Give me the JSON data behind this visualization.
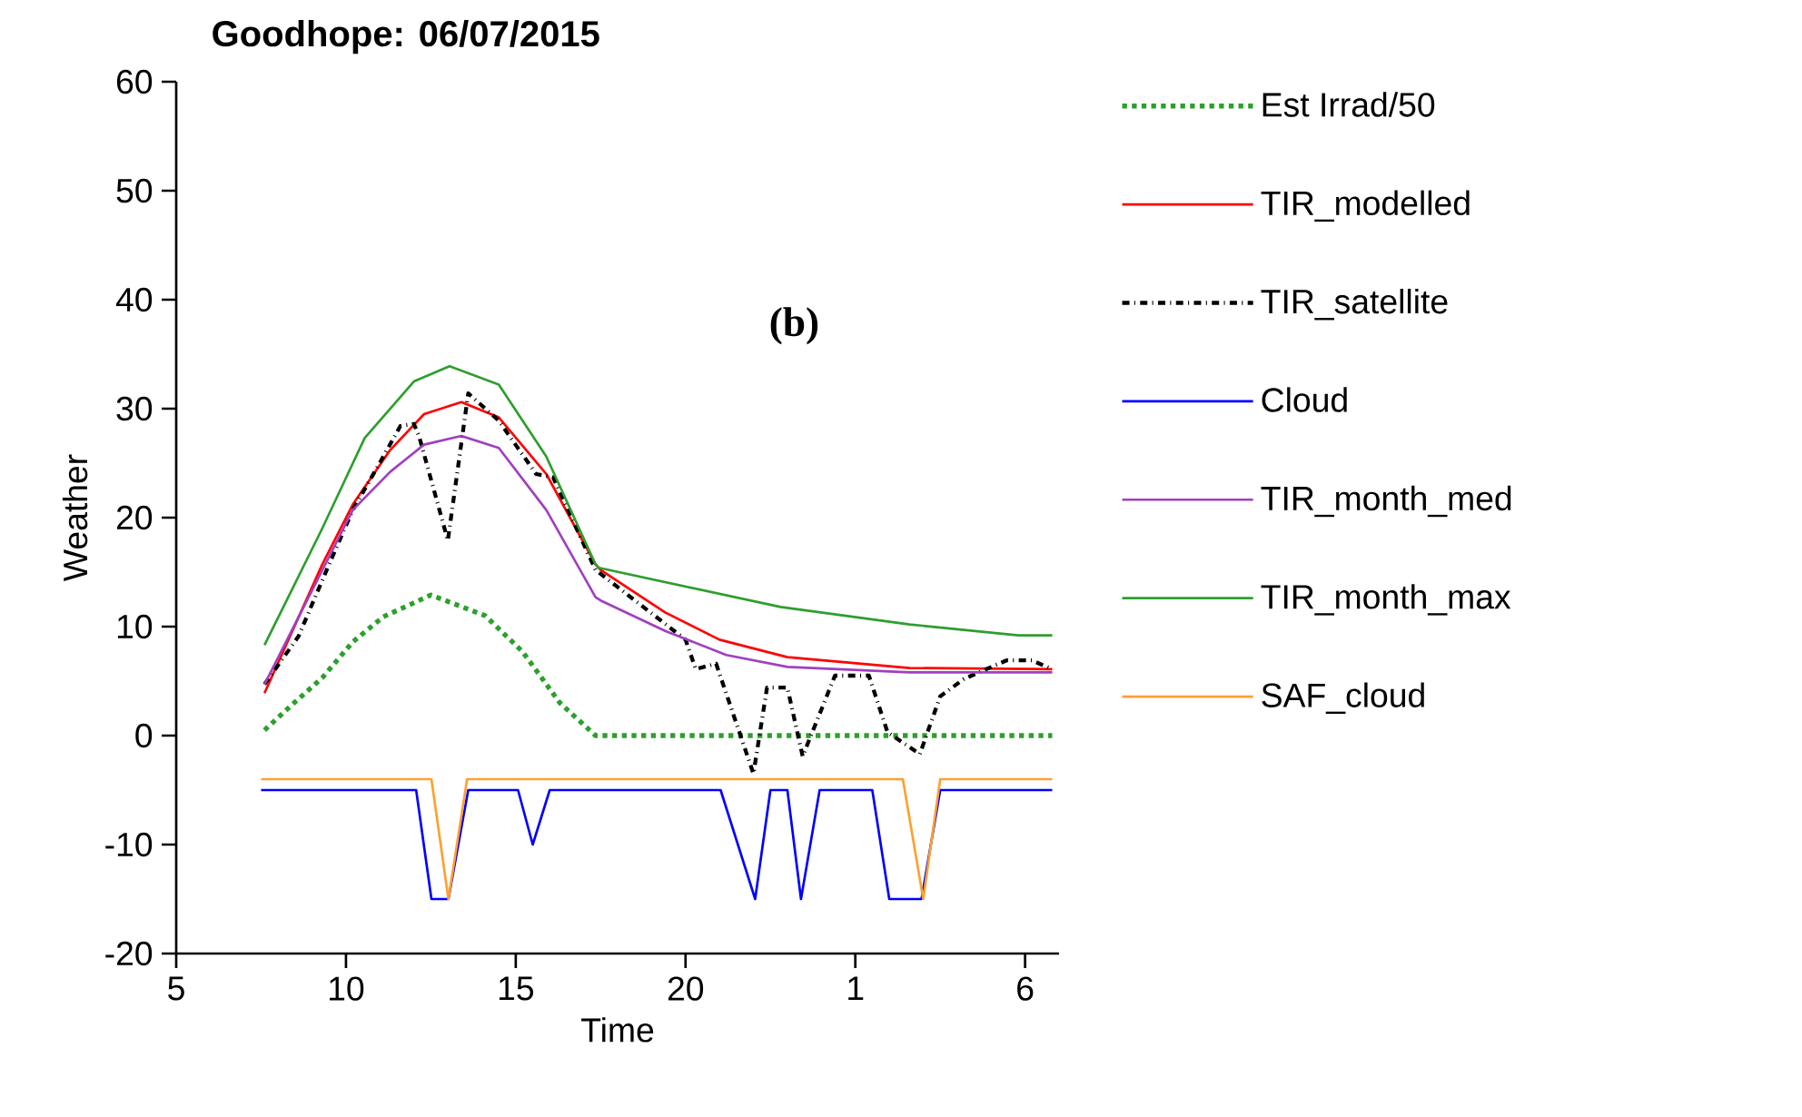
{
  "chart_data": {
    "type": "line",
    "title": "Goodhope: 06/07/2015",
    "xlabel": "Time",
    "ylabel": "Weather",
    "xlim": [
      "2015-07-06T05:00",
      "2015-07-07T07:00"
    ],
    "ylim": [
      -20,
      60
    ],
    "xticks": [
      {
        "value": "2015-07-06T05:00",
        "label": "5"
      },
      {
        "value": "2015-07-06T10:00",
        "label": "10"
      },
      {
        "value": "2015-07-06T15:00",
        "label": "15"
      },
      {
        "value": "2015-07-06T20:00",
        "label": "20"
      },
      {
        "value": "2015-07-07T01:00",
        "label": "1"
      },
      {
        "value": "2015-07-07T06:00",
        "label": "6"
      }
    ],
    "yticks": [
      -20,
      -10,
      0,
      10,
      20,
      30,
      40,
      50,
      60
    ],
    "grid": false,
    "legend": "right",
    "marker": "none",
    "annotations": [
      "(b)"
    ],
    "series": [
      {
        "name": "Est Irrad/50",
        "color": "#2ca02c",
        "line_style": "dotted",
        "x": [
          "2015-07-06T07:36",
          "2015-07-06T08:24",
          "2015-07-06T09:18",
          "2015-07-06T10:12",
          "2015-07-06T11:06",
          "2015-07-06T12:30",
          "2015-07-06T14:06",
          "2015-07-06T15:12",
          "2015-07-06T16:18",
          "2015-07-06T17:21",
          "2015-07-07T06:48"
        ],
        "values": [
          0.5,
          2.8,
          5.3,
          8.6,
          10.9,
          12.9,
          11.0,
          7.7,
          3.0,
          0,
          0
        ]
      },
      {
        "name": "TIR_modelled",
        "color": "#ff0000",
        "line_style": "solid",
        "x": [
          "2015-07-06T07:36",
          "2015-07-06T09:18",
          "2015-07-06T10:12",
          "2015-07-06T11:18",
          "2015-07-06T12:18",
          "2015-07-06T13:24",
          "2015-07-06T14:30",
          "2015-07-06T15:54",
          "2015-07-06T17:21",
          "2015-07-06T17:30",
          "2015-07-06T19:24",
          "2015-07-06T21:00",
          "2015-07-06T23:00",
          "2015-07-07T02:36",
          "2015-07-07T06:48"
        ],
        "values": [
          3.9,
          15.7,
          21.2,
          26.2,
          29.5,
          30.6,
          29.2,
          24.0,
          15.7,
          15.2,
          11.3,
          8.8,
          7.2,
          6.2,
          6.1
        ]
      },
      {
        "name": "TIR_satellite",
        "color": "#000000",
        "line_style": "dashdot",
        "x": [
          "2015-07-06T07:36",
          "2015-07-06T07:51",
          "2015-07-06T08:36",
          "2015-07-06T09:30",
          "2015-07-06T10:12",
          "2015-07-06T10:54",
          "2015-07-06T11:36",
          "2015-07-06T12:00",
          "2015-07-06T12:09",
          "2015-07-06T13:00",
          "2015-07-06T13:36",
          "2015-07-06T14:30",
          "2015-07-06T15:36",
          "2015-07-06T16:06",
          "2015-07-06T17:21",
          "2015-07-06T17:36",
          "2015-07-06T20:00",
          "2015-07-06T20:18",
          "2015-07-06T20:54",
          "2015-07-06T22:00",
          "2015-07-06T22:24",
          "2015-07-06T23:00",
          "2015-07-06T23:27",
          "2015-07-07T00:24",
          "2015-07-07T01:24",
          "2015-07-07T01:57",
          "2015-07-07T02:54",
          "2015-07-07T03:30",
          "2015-07-07T04:12",
          "2015-07-07T05:27",
          "2015-07-07T06:12",
          "2015-07-07T06:48"
        ],
        "values": [
          4.7,
          5.8,
          9.1,
          15.7,
          20.7,
          24.5,
          28.4,
          28.6,
          27.5,
          17.9,
          31.4,
          28.9,
          24.0,
          23.7,
          15.2,
          14.6,
          8.8,
          6.1,
          6.6,
          -3.5,
          4.4,
          4.4,
          -1.9,
          5.5,
          5.5,
          0.3,
          -1.7,
          3.6,
          5.2,
          6.9,
          6.9,
          6.1
        ]
      },
      {
        "name": "Cloud",
        "color": "#0000ff",
        "line_style": "solid",
        "x": [
          "2015-07-06T07:30",
          "2015-07-06T12:04",
          "2015-07-06T12:31",
          "2015-07-06T13:01",
          "2015-07-06T13:36",
          "2015-07-06T15:04",
          "2015-07-06T15:30",
          "2015-07-06T16:00",
          "2015-07-06T21:02",
          "2015-07-06T22:03",
          "2015-07-06T22:30",
          "2015-07-06T23:00",
          "2015-07-06T23:24",
          "2015-07-06T23:57",
          "2015-07-07T01:30",
          "2015-07-07T02:00",
          "2015-07-07T02:57",
          "2015-07-07T03:30",
          "2015-07-07T06:48"
        ],
        "values": [
          -5,
          -5,
          -15,
          -15,
          -5,
          -5,
          -10,
          -5,
          -5,
          -15,
          -5,
          -5,
          -15,
          -5,
          -5,
          -15,
          -15,
          -5,
          -5
        ]
      },
      {
        "name": "TIR_month_med",
        "color": "#a040c0",
        "line_style": "solid",
        "x": [
          "2015-07-06T07:36",
          "2015-07-06T10:12",
          "2015-07-06T11:18",
          "2015-07-06T12:18",
          "2015-07-06T13:24",
          "2015-07-06T14:30",
          "2015-07-06T15:54",
          "2015-07-06T17:21",
          "2015-07-06T17:30",
          "2015-07-06T19:24",
          "2015-07-06T21:12",
          "2015-07-06T23:00",
          "2015-07-07T02:36",
          "2015-07-07T06:48"
        ],
        "values": [
          4.7,
          20.7,
          24.2,
          26.7,
          27.5,
          26.4,
          20.7,
          12.7,
          12.4,
          9.6,
          7.4,
          6.3,
          5.8,
          5.8
        ]
      },
      {
        "name": "TIR_month_max",
        "color": "#2e9e2e",
        "line_style": "solid",
        "x": [
          "2015-07-06T07:36",
          "2015-07-06T09:18",
          "2015-07-06T10:33",
          "2015-07-06T12:00",
          "2015-07-06T13:03",
          "2015-07-06T14:30",
          "2015-07-06T15:54",
          "2015-07-06T17:21",
          "2015-07-06T17:27",
          "2015-07-06T22:48",
          "2015-07-07T02:36",
          "2015-07-07T05:48",
          "2015-07-07T06:48"
        ],
        "values": [
          8.3,
          19.0,
          27.3,
          32.5,
          33.9,
          32.2,
          25.6,
          15.7,
          15.4,
          11.8,
          10.2,
          9.2,
          9.2
        ]
      },
      {
        "name": "SAF_cloud",
        "color": "#ffa030",
        "line_style": "solid",
        "x": [
          "2015-07-06T07:30",
          "2015-07-06T12:31",
          "2015-07-06T13:01",
          "2015-07-06T13:34",
          "2015-07-07T02:24",
          "2015-07-07T03:00",
          "2015-07-07T03:30",
          "2015-07-07T06:48"
        ],
        "values": [
          -4,
          -4,
          -15,
          -4,
          -4,
          -15,
          -4,
          -4
        ]
      }
    ]
  }
}
